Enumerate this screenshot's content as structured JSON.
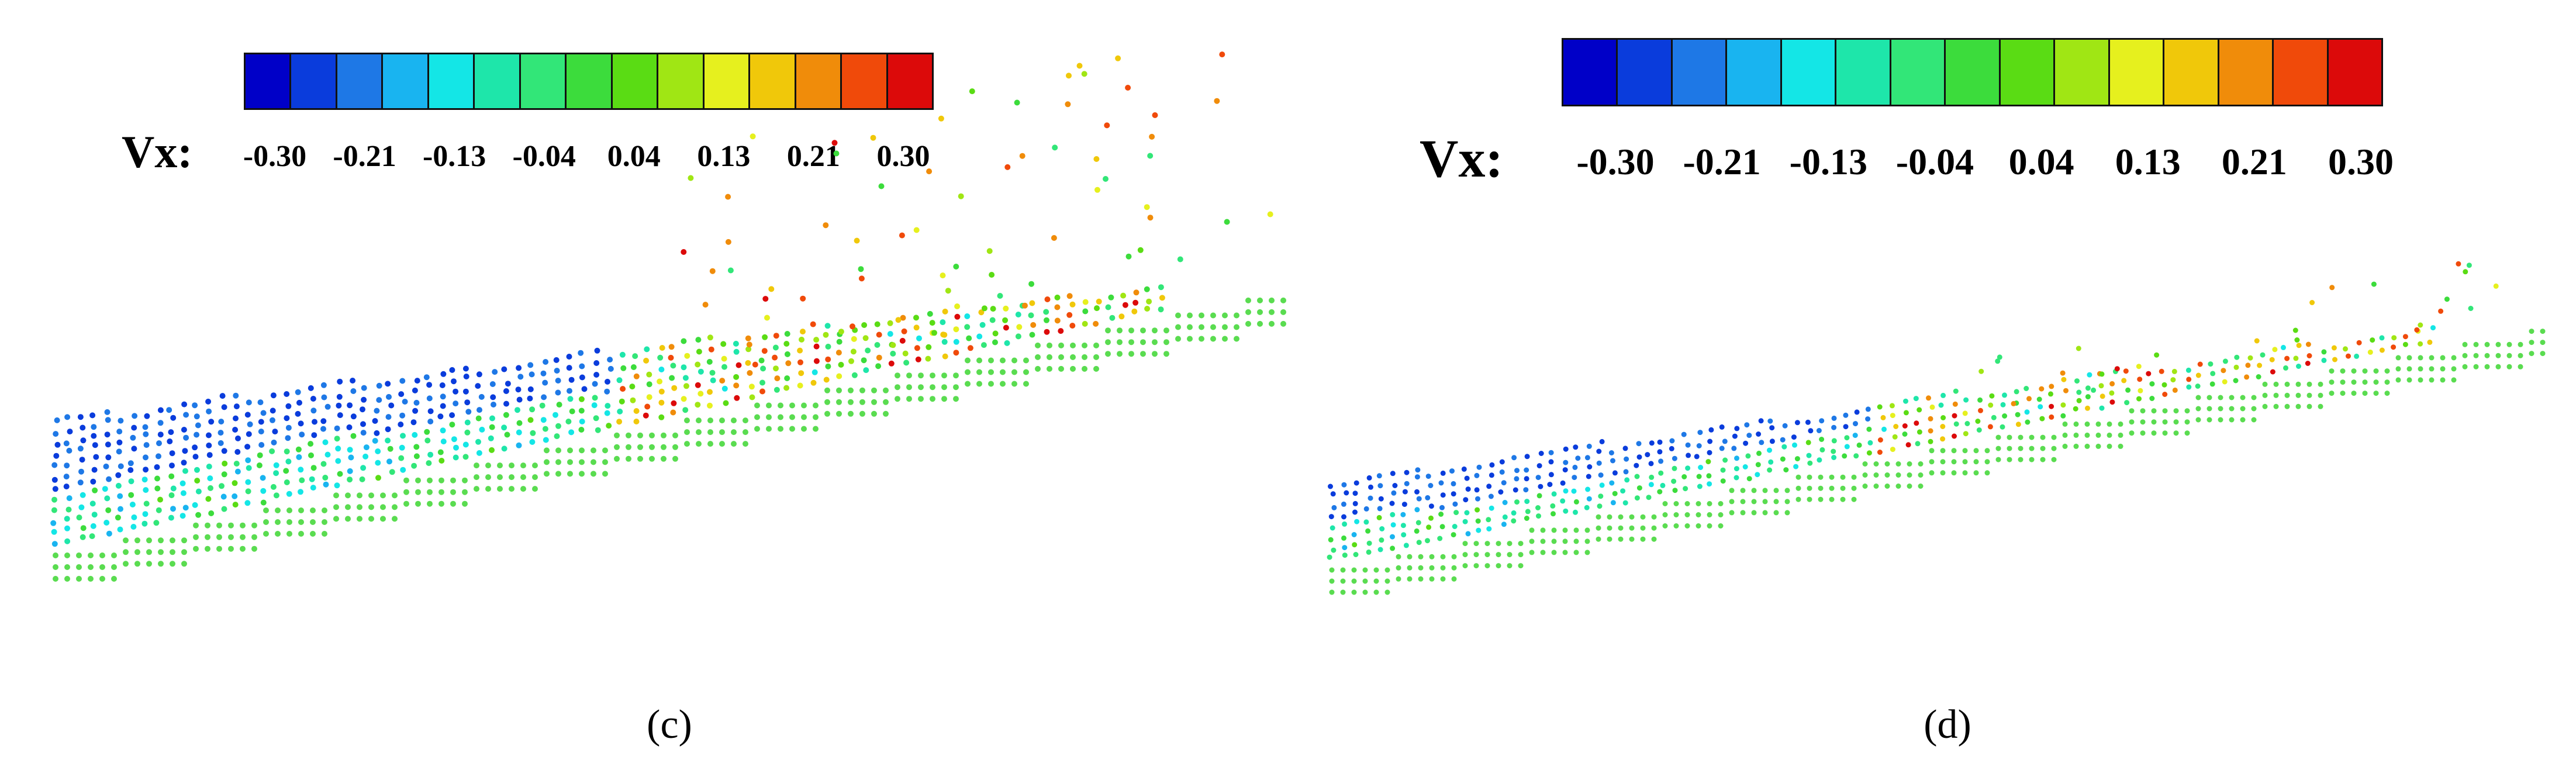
{
  "chart_data": [
    {
      "type": "scatter",
      "variable": "Vx:",
      "caption": "(c)",
      "colorbar": {
        "ticks": [
          "-0.30",
          "-0.21",
          "-0.13",
          "-0.04",
          "0.04",
          "0.13",
          "0.21",
          "0.30"
        ],
        "colors": [
          "#0000c8",
          "#0a3cdc",
          "#1e78e6",
          "#19b4f0",
          "#14e6e6",
          "#1ee6aa",
          "#32e678",
          "#3cdc3c",
          "#5adc14",
          "#a0e614",
          "#e6f01e",
          "#f0c80a",
          "#f08c0a",
          "#f04a0a",
          "#dc0a0a"
        ]
      }
    },
    {
      "type": "scatter",
      "variable": "Vx:",
      "caption": "(d)",
      "colorbar": {
        "ticks": [
          "-0.30",
          "-0.21",
          "-0.13",
          "-0.04",
          "0.04",
          "0.13",
          "0.21",
          "0.30"
        ],
        "colors": [
          "#0000c8",
          "#0a3cdc",
          "#1e78e6",
          "#19b4f0",
          "#14e6e6",
          "#1ee6aa",
          "#32e678",
          "#3cdc3c",
          "#5adc14",
          "#a0e614",
          "#e6f01e",
          "#f0c80a",
          "#f08c0a",
          "#f04a0a",
          "#dc0a0a"
        ]
      }
    }
  ]
}
